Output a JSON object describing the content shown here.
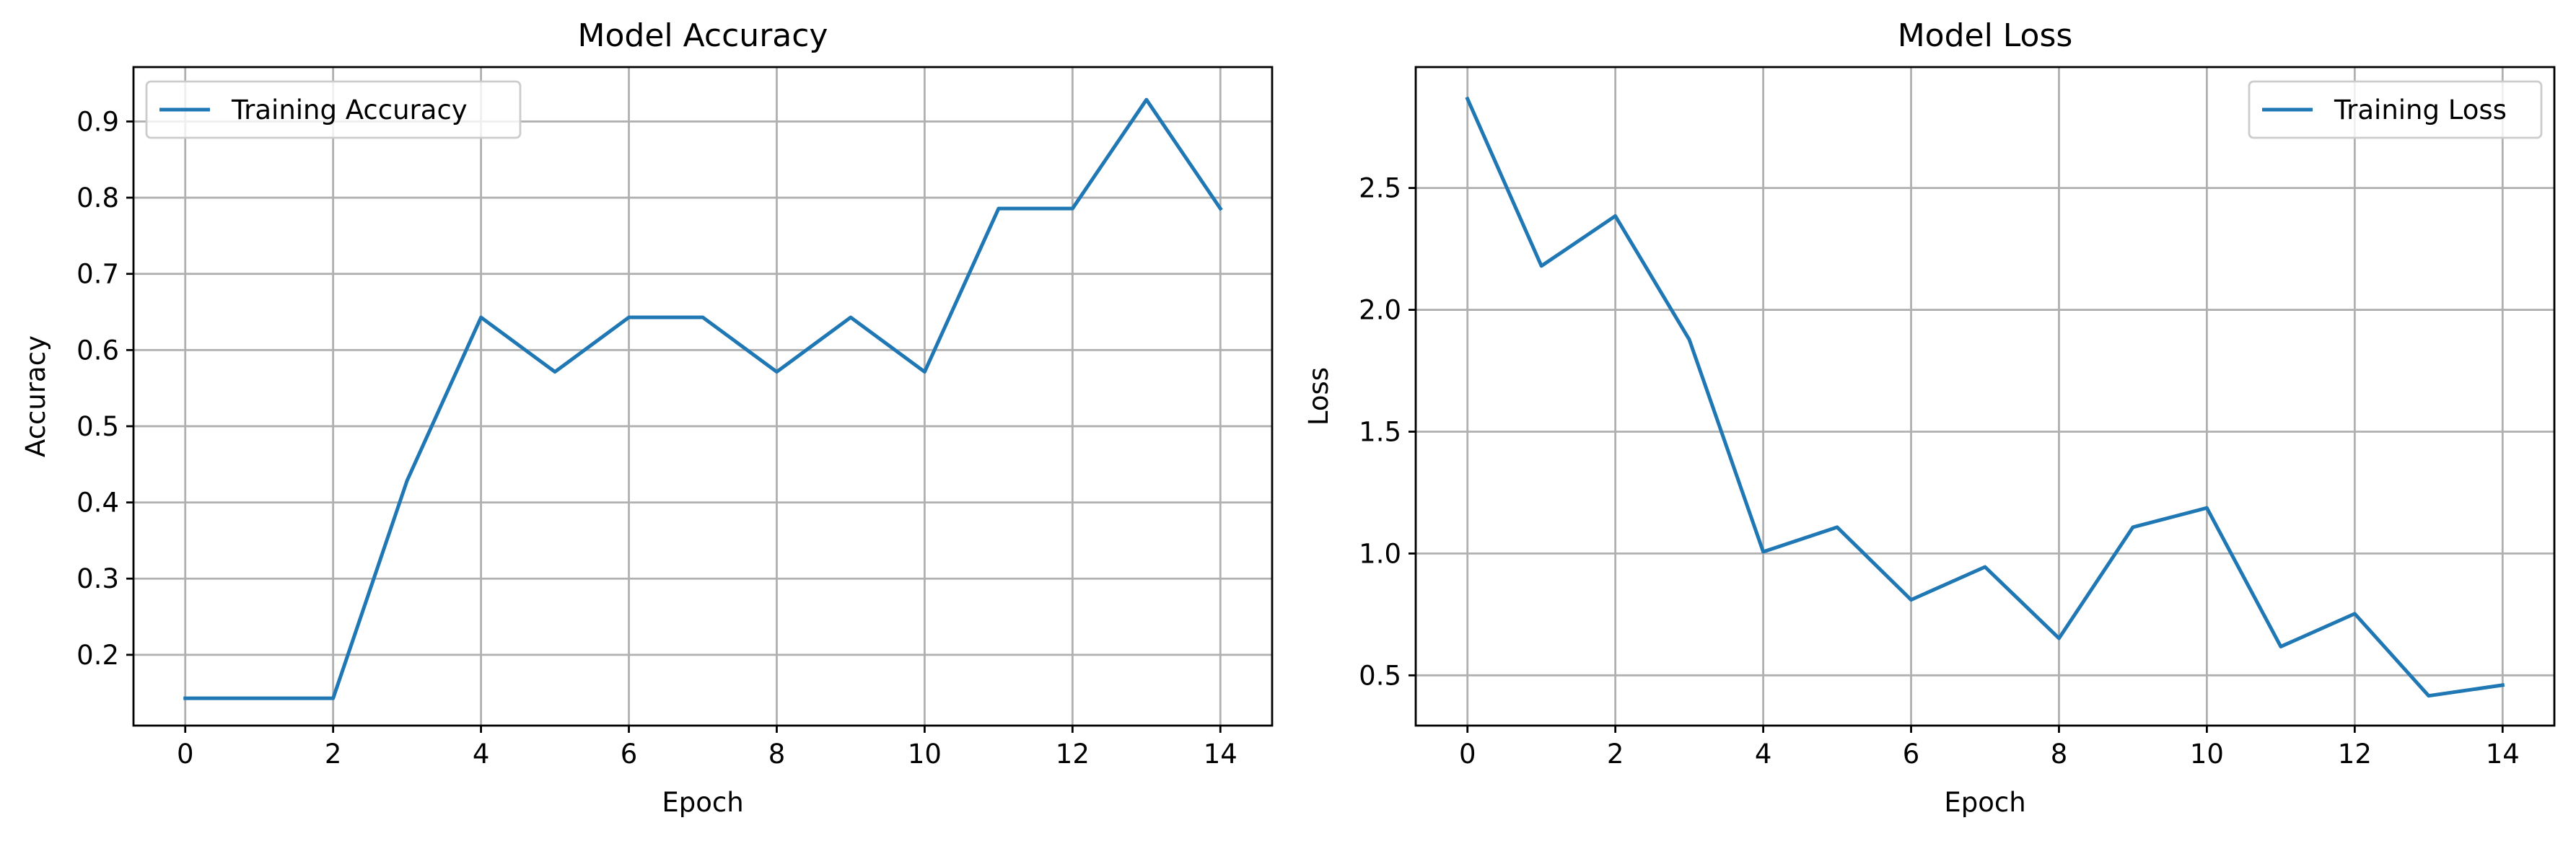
{
  "chart_data": [
    {
      "type": "line",
      "title": "Model Accuracy",
      "xlabel": "Epoch",
      "ylabel": "Accuracy",
      "xlim": [
        -0.7,
        14.7
      ],
      "ylim": [
        0.1071,
        0.9714
      ],
      "xticks": [
        0,
        2,
        4,
        6,
        8,
        10,
        12,
        14
      ],
      "xtick_labels": [
        "0",
        "2",
        "4",
        "6",
        "8",
        "10",
        "12",
        "14"
      ],
      "yticks": [
        0.2,
        0.3,
        0.4,
        0.5,
        0.6,
        0.7,
        0.8,
        0.9
      ],
      "ytick_labels": [
        "0.2",
        "0.3",
        "0.4",
        "0.5",
        "0.6",
        "0.7",
        "0.8",
        "0.9"
      ],
      "grid": true,
      "legend_position": "upper left",
      "series": [
        {
          "name": "Training Accuracy",
          "color": "#1f77b4",
          "x": [
            0,
            1,
            2,
            3,
            4,
            5,
            6,
            7,
            8,
            9,
            10,
            11,
            12,
            13,
            14
          ],
          "y": [
            0.1429,
            0.1429,
            0.1429,
            0.4286,
            0.6429,
            0.5714,
            0.6429,
            0.6429,
            0.5714,
            0.6429,
            0.5714,
            0.7857,
            0.7857,
            0.9286,
            0.7857
          ]
        }
      ]
    },
    {
      "type": "line",
      "title": "Model Loss",
      "xlabel": "Epoch",
      "ylabel": "Loss",
      "xlim": [
        -0.7,
        14.7
      ],
      "ylim": [
        0.2938,
        2.9962
      ],
      "xticks": [
        0,
        2,
        4,
        6,
        8,
        10,
        12,
        14
      ],
      "xtick_labels": [
        "0",
        "2",
        "4",
        "6",
        "8",
        "10",
        "12",
        "14"
      ],
      "yticks": [
        0.5,
        1.0,
        1.5,
        2.0,
        2.5
      ],
      "ytick_labels": [
        "0.5",
        "1.0",
        "1.5",
        "2.0",
        "2.5"
      ],
      "grid": true,
      "legend_position": "upper right",
      "series": [
        {
          "name": "Training Loss",
          "color": "#1f77b4",
          "x": [
            0,
            1,
            2,
            3,
            4,
            5,
            6,
            7,
            8,
            9,
            10,
            11,
            12,
            13,
            14
          ],
          "y": [
            2.866,
            2.18,
            2.385,
            1.878,
            1.007,
            1.108,
            0.81,
            0.945,
            0.652,
            1.108,
            1.187,
            0.618,
            0.753,
            0.416,
            0.46
          ]
        }
      ]
    }
  ]
}
